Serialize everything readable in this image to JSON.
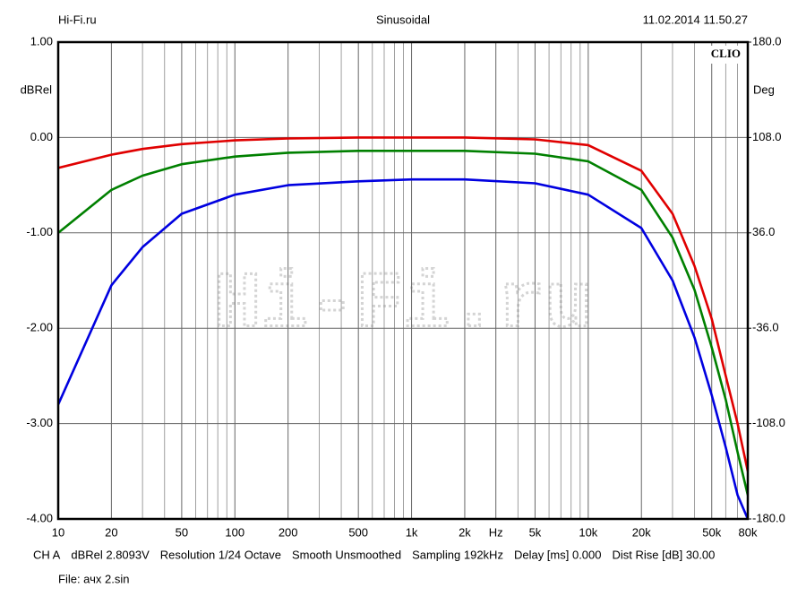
{
  "chart_data": {
    "type": "line",
    "header_left": "Hi-Fi.ru",
    "title": "Sinusoidal",
    "header_right": "11.02.2014 11.50.27",
    "brand": "CLIO",
    "ylabel": "dBRel",
    "y2label": "Deg",
    "watermark": "Hi-Fi.ru",
    "xscale": "log",
    "grid": true,
    "xlim": [
      10,
      80000
    ],
    "ylim": [
      -4,
      1
    ],
    "y2lim": [
      -180,
      180
    ],
    "xticks": [
      10,
      20,
      50,
      100,
      200,
      500,
      {
        "value": 1000,
        "label": "1k"
      },
      {
        "value": 2000,
        "label": "2k"
      },
      {
        "value": 3000,
        "label": "Hz"
      },
      {
        "value": 5000,
        "label": "5k"
      },
      {
        "value": 10000,
        "label": "10k"
      },
      {
        "value": 20000,
        "label": "20k"
      },
      {
        "value": 50000,
        "label": "50k"
      },
      {
        "value": 80000,
        "label": "80k"
      }
    ],
    "x_minor_ticks": [
      30,
      40,
      60,
      70,
      80,
      90,
      300,
      400,
      600,
      700,
      800,
      900,
      4000,
      6000,
      7000,
      8000,
      9000,
      30000,
      40000,
      60000,
      70000
    ],
    "yticks": [
      {
        "value": 1,
        "label": "1.00"
      },
      {
        "value": 0,
        "label": "0.00"
      },
      {
        "value": -1,
        "label": "-1.00"
      },
      {
        "value": -2,
        "label": "-2.00"
      },
      {
        "value": -3,
        "label": "-3.00"
      },
      {
        "value": -4,
        "label": "-4.00"
      }
    ],
    "y2ticks": [
      {
        "value": 180,
        "label": "180.0"
      },
      {
        "value": 108,
        "label": "108.0"
      },
      {
        "value": 36,
        "label": "36.0"
      },
      {
        "value": -36,
        "label": "-36.0"
      },
      {
        "value": -108,
        "label": "-108.0"
      },
      {
        "value": -180,
        "label": "-180.0"
      }
    ],
    "x": [
      10,
      20,
      30,
      50,
      100,
      200,
      500,
      1000,
      2000,
      5000,
      10000,
      20000,
      30000,
      40000,
      50000,
      60000,
      70000,
      80000
    ],
    "series": [
      {
        "color": "#e00000",
        "values": [
          -0.32,
          -0.18,
          -0.12,
          -0.07,
          -0.03,
          -0.01,
          0,
          0,
          0,
          -0.02,
          -0.08,
          -0.35,
          -0.8,
          -1.35,
          -1.9,
          -2.5,
          -3.0,
          -3.5
        ]
      },
      {
        "color": "#008000",
        "values": [
          -1.0,
          -0.55,
          -0.4,
          -0.28,
          -0.2,
          -0.16,
          -0.14,
          -0.14,
          -0.14,
          -0.17,
          -0.25,
          -0.55,
          -1.05,
          -1.6,
          -2.2,
          -2.75,
          -3.3,
          -3.75
        ]
      },
      {
        "color": "#0000e0",
        "values": [
          -2.8,
          -1.55,
          -1.15,
          -0.8,
          -0.6,
          -0.5,
          -0.46,
          -0.44,
          -0.44,
          -0.48,
          -0.6,
          -0.95,
          -1.5,
          -2.1,
          -2.7,
          -3.25,
          -3.75,
          -4.0
        ]
      }
    ],
    "footer": [
      "CH A",
      "dBRel 2.8093V",
      "Resolution 1/24 Octave",
      "Smooth Unsmoothed",
      "Sampling 192kHz",
      "Delay [ms] 0.000",
      "Dist Rise [dB] 30.00"
    ],
    "file": "File: ачх 2.sin"
  }
}
